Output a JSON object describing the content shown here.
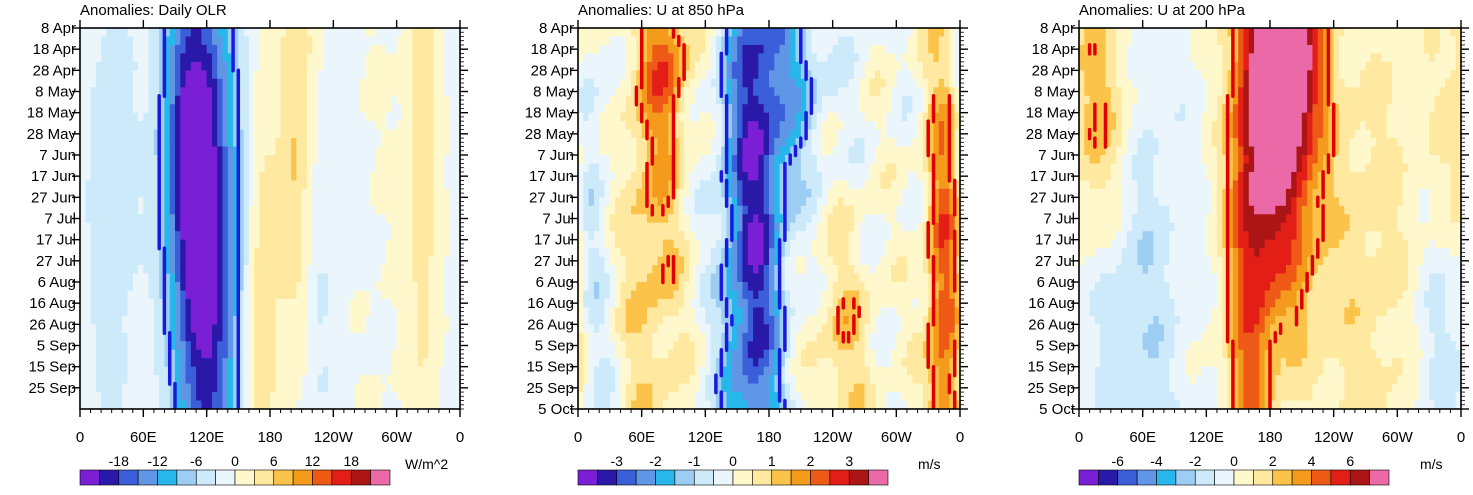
{
  "chart_data": [
    {
      "type": "heatmap",
      "title": "Anomalies: Daily OLR",
      "units": "W/m^2",
      "xlabel": "",
      "ylabel": "",
      "x_ticks": [
        "0",
        "60E",
        "120E",
        "180",
        "120W",
        "60W",
        "0"
      ],
      "y_ticks": [
        "8 Apr",
        "18 Apr",
        "28 Apr",
        "8 May",
        "18 May",
        "28 May",
        "7 Jun",
        "17 Jun",
        "27 Jun",
        "7 Jul",
        "17 Jul",
        "27 Jul",
        "6 Aug",
        "16 Aug",
        "26 Aug",
        "5 Sep",
        "15 Sep",
        "25 Sep"
      ],
      "colorbar_labels": [
        "-18",
        "-12",
        "-6",
        "0",
        "6",
        "12",
        "18"
      ],
      "color_levels": [
        -21,
        -18,
        -15,
        -12,
        -9,
        -6,
        -3,
        0,
        3,
        6,
        9,
        12,
        15,
        18,
        21
      ],
      "features": [
        {
          "lon": 120,
          "day": 110,
          "width": 22,
          "length": 100,
          "amp": -22
        },
        {
          "lon": 100,
          "day": 50,
          "width": 18,
          "length": 60,
          "amp": -12
        },
        {
          "lon": 205,
          "day": 60,
          "width": 12,
          "length": 80,
          "amp": 8
        },
        {
          "lon": 172,
          "day": 130,
          "width": 10,
          "length": 60,
          "amp": 7
        },
        {
          "lon": 220,
          "day": 130,
          "width": 18,
          "length": 80,
          "amp": -4
        },
        {
          "lon": 325,
          "day": 60,
          "width": 10,
          "length": 90,
          "amp": 5
        },
        {
          "lon": 30,
          "day": 80,
          "width": 20,
          "length": 100,
          "amp": -5
        }
      ],
      "contours": [
        {
          "level": 0,
          "sign": "negative",
          "color": "#1a1adf"
        },
        {
          "level": 0,
          "sign": "positive",
          "color": "#e00000"
        }
      ]
    },
    {
      "type": "heatmap",
      "title": "Anomalies: U at 850 hPa",
      "units": "m/s",
      "xlabel": "",
      "ylabel": "",
      "x_ticks": [
        "0",
        "60E",
        "120E",
        "180",
        "120W",
        "60W",
        "0"
      ],
      "y_ticks": [
        "8 Apr",
        "18 Apr",
        "28 Apr",
        "8 May",
        "18 May",
        "28 May",
        "7 Jun",
        "17 Jun",
        "27 Jun",
        "7 Jul",
        "17 Jul",
        "27 Jul",
        "6 Aug",
        "16 Aug",
        "26 Aug",
        "5 Sep",
        "15 Sep",
        "25 Sep",
        "5 Oct"
      ],
      "colorbar_labels": [
        "-3",
        "-2",
        "-1",
        "0",
        "1",
        "2",
        "3"
      ],
      "color_levels": [
        -3.5,
        -3,
        -2.5,
        -2,
        -1.5,
        -1,
        -0.5,
        0,
        0.5,
        1,
        1.5,
        2,
        2.5,
        3,
        3.5
      ],
      "features": [
        {
          "lon": 165,
          "day": 110,
          "width": 20,
          "length": 110,
          "amp": -3.2
        },
        {
          "lon": 195,
          "day": 20,
          "width": 30,
          "length": 40,
          "amp": -1.5
        },
        {
          "lon": 70,
          "day": 80,
          "width": 20,
          "length": 90,
          "amp": 1.3
        },
        {
          "lon": 85,
          "day": 15,
          "width": 15,
          "length": 25,
          "amp": 1.5
        },
        {
          "lon": 345,
          "day": 130,
          "width": 12,
          "length": 90,
          "amp": 2.5
        },
        {
          "lon": 250,
          "day": 150,
          "width": 20,
          "length": 40,
          "amp": 1
        },
        {
          "lon": 10,
          "day": 80,
          "width": 15,
          "length": 120,
          "amp": -0.7
        }
      ],
      "contours": [
        {
          "level": 0,
          "sign": "negative",
          "color": "#1a1adf"
        },
        {
          "level": 0,
          "sign": "positive",
          "color": "#e00000"
        }
      ]
    },
    {
      "type": "heatmap",
      "title": "Anomalies: U at 200 hPa",
      "units": "m/s",
      "xlabel": "",
      "ylabel": "",
      "x_ticks": [
        "0",
        "60E",
        "120E",
        "180",
        "120W",
        "60W",
        "0"
      ],
      "y_ticks": [
        "8 Apr",
        "18 Apr",
        "28 Apr",
        "8 May",
        "18 May",
        "28 May",
        "7 Jun",
        "17 Jun",
        "27 Jun",
        "7 Jul",
        "17 Jul",
        "27 Jul",
        "6 Aug",
        "16 Aug",
        "26 Aug",
        "5 Sep",
        "15 Sep",
        "25 Sep",
        "5 Oct"
      ],
      "colorbar_labels": [
        "-6",
        "-4",
        "-2",
        "0",
        "2",
        "4",
        "6"
      ],
      "color_levels": [
        -7,
        -6,
        -5,
        -4,
        -3,
        -2,
        -1,
        0,
        1,
        2,
        3,
        4,
        5,
        6,
        7
      ],
      "features": [
        {
          "lon": 190,
          "day": 50,
          "width": 25,
          "length": 60,
          "amp": 7
        },
        {
          "lon": 195,
          "day": 15,
          "width": 20,
          "length": 25,
          "amp": 6
        },
        {
          "lon": 160,
          "day": 120,
          "width": 15,
          "length": 110,
          "amp": 4
        },
        {
          "lon": 20,
          "day": 40,
          "width": 25,
          "length": 45,
          "amp": 3
        },
        {
          "lon": 55,
          "day": 120,
          "width": 30,
          "length": 90,
          "amp": -2
        },
        {
          "lon": 270,
          "day": 120,
          "width": 40,
          "length": 100,
          "amp": 1.5
        },
        {
          "lon": 340,
          "day": 150,
          "width": 20,
          "length": 40,
          "amp": -1.5
        }
      ],
      "contours": [
        {
          "level": 0,
          "sign": "negative",
          "color": "#1a1adf"
        },
        {
          "level": 0,
          "sign": "positive",
          "color": "#e00000"
        }
      ]
    }
  ],
  "palette": [
    "#7a1fd6",
    "#2a19a8",
    "#3b5fd8",
    "#5f96e6",
    "#27b7ea",
    "#9dcdf3",
    "#cdeafa",
    "#eaf6fc",
    "#fff8cc",
    "#ffe9a0",
    "#fcc34a",
    "#f59b1c",
    "#ee5a16",
    "#e21e16",
    "#ab1515",
    "#eb69a6"
  ]
}
